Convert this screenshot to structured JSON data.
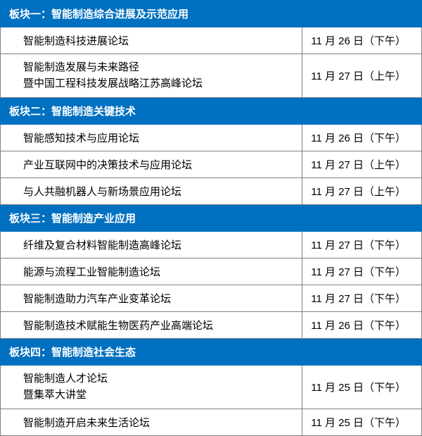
{
  "colors": {
    "header_bg": "#0070c0",
    "header_text": "#ffffff",
    "border": "#7f7f7f",
    "cell_text": "#000000",
    "background": "#ffffff"
  },
  "sections": [
    {
      "title": "板块一：智能制造综合进展及示范应用",
      "rows": [
        {
          "topic": "智能制造科技进展论坛",
          "date": "11 月 26 日（下午）"
        },
        {
          "topic": "智能制造发展与未来路径\n暨中国工程科技发展战略江苏高峰论坛",
          "date": "11 月 27 日（上午）"
        }
      ]
    },
    {
      "title": "板块二：智能制造关键技术",
      "rows": [
        {
          "topic": "智能感知技术与应用论坛",
          "date": "11 月 26 日（下午）"
        },
        {
          "topic": "产业互联网中的决策技术与应用论坛",
          "date": "11 月 27 日（上午）"
        },
        {
          "topic": "与人共融机器人与新场景应用论坛",
          "date": "11 月 27 日（上午）"
        }
      ]
    },
    {
      "title": "板块三：智能制造产业应用",
      "rows": [
        {
          "topic": "纤维及复合材料智能制造高峰论坛",
          "date": "11 月 27 日（下午）"
        },
        {
          "topic": "能源与流程工业智能制造论坛",
          "date": "11 月 27 日（下午）"
        },
        {
          "topic": "智能制造助力汽车产业变革论坛",
          "date": "11 月 27 日（下午）"
        },
        {
          "topic": "智能制造技术赋能生物医药产业高端论坛",
          "date": "11 月 26 日（下午）"
        }
      ]
    },
    {
      "title": "板块四：智能制造社会生态",
      "rows": [
        {
          "topic": "智能制造人才论坛\n暨集萃大讲堂",
          "date": "11 月 25 日（下午）"
        },
        {
          "topic": "智能制造开启未来生活论坛",
          "date": "11 月 25 日（下午）"
        }
      ]
    }
  ]
}
